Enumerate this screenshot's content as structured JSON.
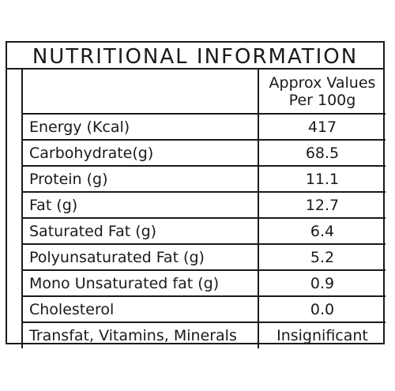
{
  "title": "NUTRITIONAL INFORMATION",
  "header": {
    "label": "",
    "value_line1": "Approx Values",
    "value_line2": "Per 100g"
  },
  "rows": [
    {
      "label": "Energy (Kcal)",
      "value": "417"
    },
    {
      "label": "Carbohydrate(g)",
      "value": "68.5"
    },
    {
      "label": "Protein (g)",
      "value": "11.1"
    },
    {
      "label": "Fat (g)",
      "value": "12.7"
    },
    {
      "label": "Saturated Fat (g)",
      "value": "6.4"
    },
    {
      "label": "Polyunsaturated Fat (g)",
      "value": "5.2"
    },
    {
      "label": "Mono Unsaturated fat (g)",
      "value": "0.9"
    },
    {
      "label": "Cholesterol",
      "value": "0.0"
    },
    {
      "label": "Transfat, Vitamins, Minerals",
      "value": "Insignificant"
    }
  ]
}
